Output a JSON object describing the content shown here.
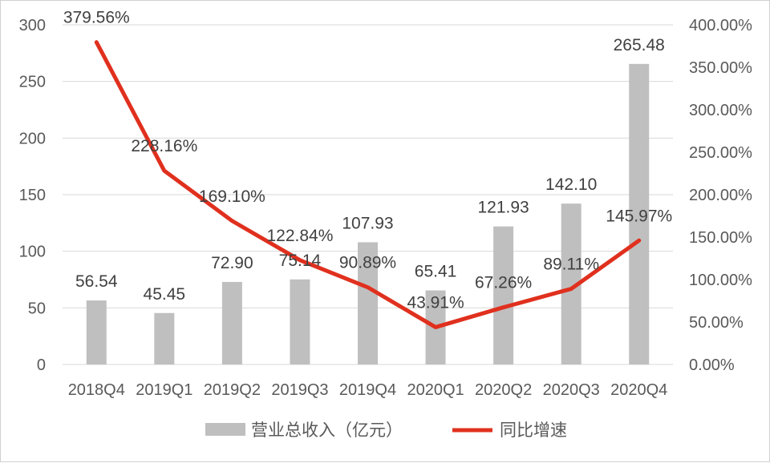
{
  "chart_data": {
    "type": "bar+line",
    "categories": [
      "2018Q4",
      "2019Q1",
      "2019Q2",
      "2019Q3",
      "2019Q4",
      "2020Q1",
      "2020Q2",
      "2020Q3",
      "2020Q4"
    ],
    "series": [
      {
        "name": "营业总收入（亿元）",
        "type": "bar",
        "axis": "left",
        "values": [
          56.54,
          45.45,
          72.9,
          75.14,
          107.93,
          65.41,
          121.93,
          142.1,
          265.48
        ],
        "labels": [
          "56.54",
          "45.45",
          "72.90",
          "75.14",
          "107.93",
          "65.41",
          "121.93",
          "142.10",
          "265.48"
        ],
        "color": "#bfbfbf"
      },
      {
        "name": "同比增速",
        "type": "line",
        "axis": "right",
        "values": [
          379.56,
          228.16,
          169.1,
          122.84,
          90.89,
          43.91,
          67.26,
          89.11,
          145.97
        ],
        "labels": [
          "379.56%",
          "228.16%",
          "169.10%",
          "122.84%",
          "90.89%",
          "43.91%",
          "67.26%",
          "89.11%",
          "145.97%"
        ],
        "color": "#e0301e"
      }
    ],
    "y_left": {
      "min": 0,
      "max": 300,
      "ticks": [
        "0",
        "50",
        "100",
        "150",
        "200",
        "250",
        "300"
      ]
    },
    "y_right": {
      "min": 0,
      "max": 400,
      "ticks": [
        "0.00%",
        "50.00%",
        "100.00%",
        "150.00%",
        "200.00%",
        "250.00%",
        "300.00%",
        "350.00%",
        "400.00%"
      ]
    },
    "grid": true,
    "legend_position": "bottom"
  }
}
